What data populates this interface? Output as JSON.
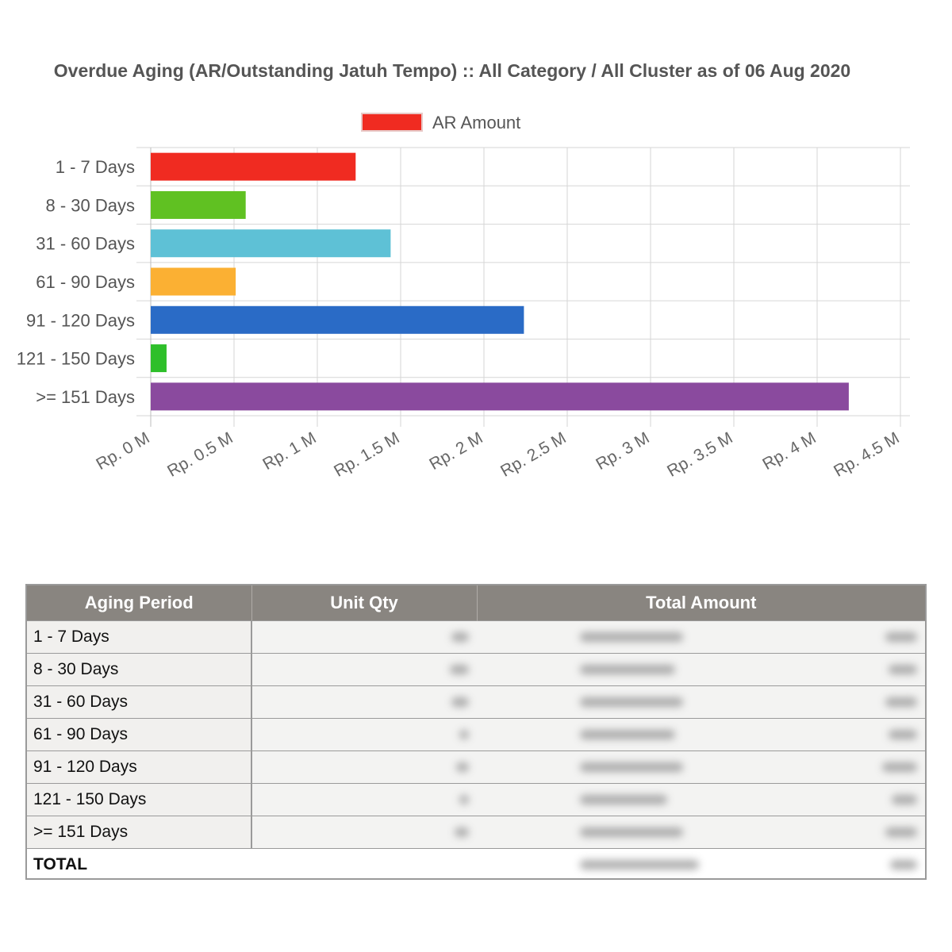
{
  "chart_data": {
    "type": "bar",
    "orientation": "horizontal",
    "title": "Overdue Aging (AR/Outstanding Jatuh Tempo) :: All Category / All Cluster as of 06 Aug 2020",
    "legend": {
      "position": "top",
      "entries": [
        "AR Amount"
      ]
    },
    "categories": [
      "1 - 7 Days",
      "8 - 30 Days",
      "31 - 60 Days",
      "61 - 90 Days",
      "91 - 120 Days",
      "121 - 150 Days",
      ">= 151 Days"
    ],
    "series": [
      {
        "name": "AR Amount",
        "values": [
          1230000,
          570000,
          1440000,
          510000,
          2240000,
          95000,
          4190000
        ],
        "colors": [
          "#f02b21",
          "#60c122",
          "#5ec1d6",
          "#fbb033",
          "#2a6bc6",
          "#2ebf2a",
          "#8a4a9e"
        ]
      }
    ],
    "xlim": [
      0,
      4500000
    ],
    "x_ticks": [
      0,
      500000,
      1000000,
      1500000,
      2000000,
      2500000,
      3000000,
      3500000,
      4000000,
      4500000
    ],
    "x_tick_labels": [
      "Rp. 0 M",
      "Rp. 0.5 M",
      "Rp. 1 M",
      "Rp. 1.5 M",
      "Rp. 2 M",
      "Rp. 2.5 M",
      "Rp. 3 M",
      "Rp. 3.5 M",
      "Rp. 4 M",
      "Rp. 4.5 M"
    ],
    "grid": true,
    "xlabel": "",
    "ylabel": ""
  },
  "table": {
    "headers": [
      "Aging Period",
      "Unit Qty",
      "Total Amount"
    ],
    "rows": [
      {
        "period": "1 - 7 Days"
      },
      {
        "period": "8 - 30 Days"
      },
      {
        "period": "31 - 60 Days"
      },
      {
        "period": "61 - 90 Days"
      },
      {
        "period": "91 - 120 Days"
      },
      {
        "period": "121 - 150 Days"
      },
      {
        "period": ">= 151 Days"
      }
    ],
    "total_label": "TOTAL",
    "values_obscured": true
  }
}
